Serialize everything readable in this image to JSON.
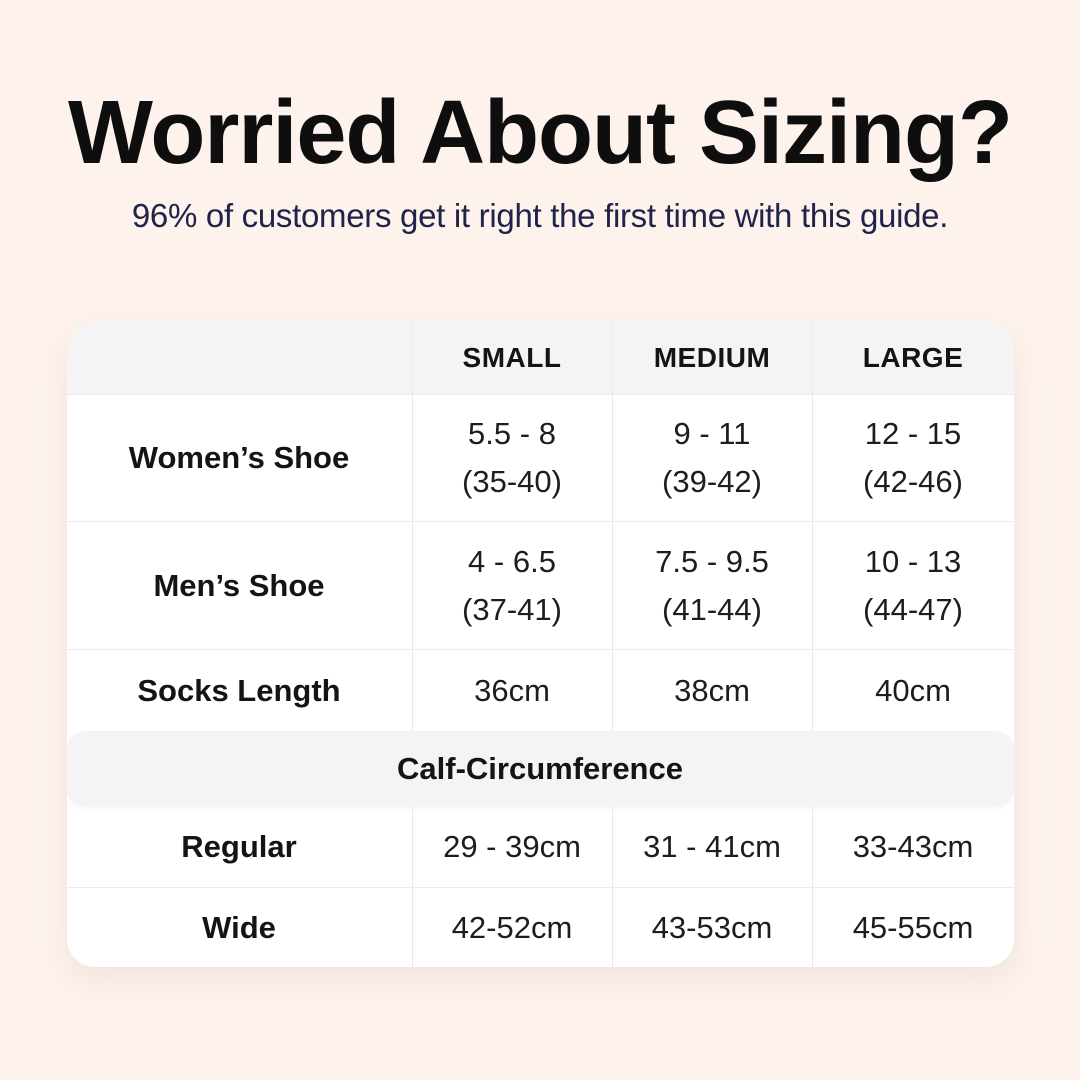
{
  "colors": {
    "background": "#fdf2ec",
    "card": "#ffffff",
    "band_gray": "#f4f4f5",
    "divider": "#e9e9ea",
    "title": "#0e0e0e",
    "subtitle_navy": "#1f2349"
  },
  "header": {
    "title": "Worried About Sizing?",
    "subtitle": "96% of customers get it right the first time with this guide."
  },
  "chart_data": {
    "type": "table",
    "title": "Worried About Sizing?",
    "subtitle": "96% of customers get it right the first time with this guide.",
    "columns": [
      "SMALL",
      "MEDIUM",
      "LARGE"
    ],
    "sections": [
      {
        "rows": [
          {
            "label": "Women’s Shoe",
            "cells": [
              [
                "5.5 - 8",
                "(35-40)"
              ],
              [
                "9 - 11",
                "(39-42)"
              ],
              [
                "12 - 15",
                "(42-46)"
              ]
            ]
          },
          {
            "label": "Men’s Shoe",
            "cells": [
              [
                "4 - 6.5",
                "(37-41)"
              ],
              [
                "7.5 - 9.5",
                "(41-44)"
              ],
              [
                "10 - 13",
                "(44-47)"
              ]
            ]
          },
          {
            "label": "Socks Length",
            "cells": [
              [
                "36cm"
              ],
              [
                "38cm"
              ],
              [
                "40cm"
              ]
            ]
          }
        ]
      },
      {
        "header": "Calf-Circumference",
        "rows": [
          {
            "label": "Regular",
            "cells": [
              [
                "29 - 39cm"
              ],
              [
                "31 - 41cm"
              ],
              [
                "33-43cm"
              ]
            ]
          },
          {
            "label": "Wide",
            "cells": [
              [
                "42-52cm"
              ],
              [
                "43-53cm"
              ],
              [
                "45-55cm"
              ]
            ]
          }
        ]
      }
    ],
    "layout": {
      "grid": "off",
      "header_background": "gray-band",
      "section_header_style": "full-width-rounded-band"
    }
  }
}
